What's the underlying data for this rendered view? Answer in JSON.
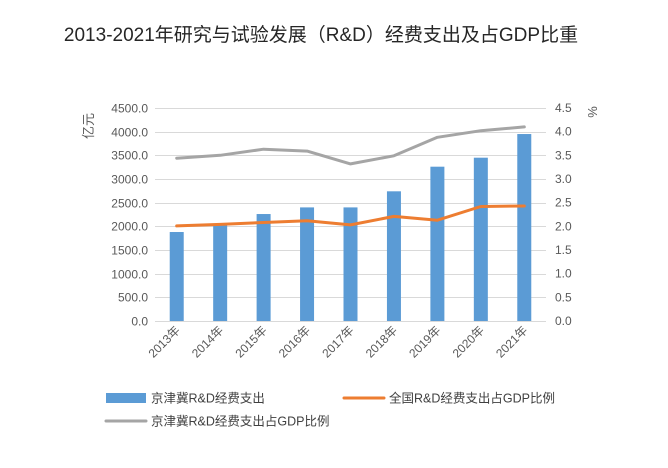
{
  "chart_data": {
    "type": "bar",
    "title": "2013-2021年研究与试验发展（R&D）经费支出及占GDP比重",
    "categories": [
      "2013年",
      "2014年",
      "2015年",
      "2016年",
      "2017年",
      "2018年",
      "2019年",
      "2020年",
      "2021年"
    ],
    "y_left": {
      "label": "亿元",
      "range": [
        0,
        4500
      ],
      "ticks": [
        "0.0",
        "500.0",
        "1000.0",
        "1500.0",
        "2000.0",
        "2500.0",
        "3000.0",
        "3500.0",
        "4000.0",
        "4500.0"
      ]
    },
    "y_right": {
      "label": "%",
      "range": [
        0,
        4.5
      ],
      "ticks": [
        "0.0",
        "0.5",
        "1.0",
        "1.5",
        "2.0",
        "2.5",
        "3.0",
        "3.5",
        "4.0",
        "4.5"
      ]
    },
    "series": [
      {
        "name": "京津冀R&D经费支出",
        "type": "bar",
        "axis": "left",
        "color": "#5b9bd5",
        "values": [
          1880,
          2030,
          2260,
          2400,
          2400,
          2740,
          3260,
          3450,
          3950
        ]
      },
      {
        "name": "全国R&D经费支出占GDP比例",
        "type": "line",
        "axis": "right",
        "color": "#ed7d31",
        "values": [
          2.01,
          2.04,
          2.08,
          2.12,
          2.03,
          2.21,
          2.13,
          2.42,
          2.43
        ]
      },
      {
        "name": "京津冀R&D经费支出占GDP比例",
        "type": "line",
        "axis": "right",
        "color": "#a5a5a5",
        "values": [
          3.44,
          3.5,
          3.63,
          3.59,
          3.32,
          3.49,
          3.88,
          4.02,
          4.1
        ]
      }
    ],
    "grid": true,
    "legend_position": "bottom"
  }
}
